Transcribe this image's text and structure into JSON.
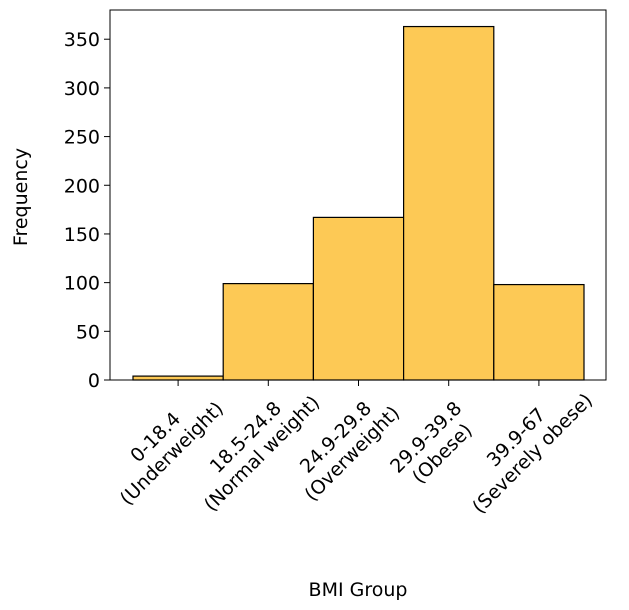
{
  "chart_data": {
    "type": "bar",
    "title": "",
    "xlabel": "BMI Group",
    "ylabel": "Frequency",
    "ylim": [
      0,
      380
    ],
    "yticks": [
      0,
      50,
      100,
      150,
      200,
      250,
      300,
      350
    ],
    "grid": false,
    "legend": "none",
    "bar_color": "#fdc955",
    "edge_color": "#000000",
    "categories": [
      [
        "0-18.4",
        "(Underweight)"
      ],
      [
        "18.5-24.8",
        "(Normal weight)"
      ],
      [
        "24.9-29.8",
        "(Overweight)"
      ],
      [
        "29.9-39.8",
        "(Obese)"
      ],
      [
        "39.9-67",
        "(Severely obese)"
      ]
    ],
    "values": [
      4,
      99,
      167,
      363,
      98
    ]
  }
}
